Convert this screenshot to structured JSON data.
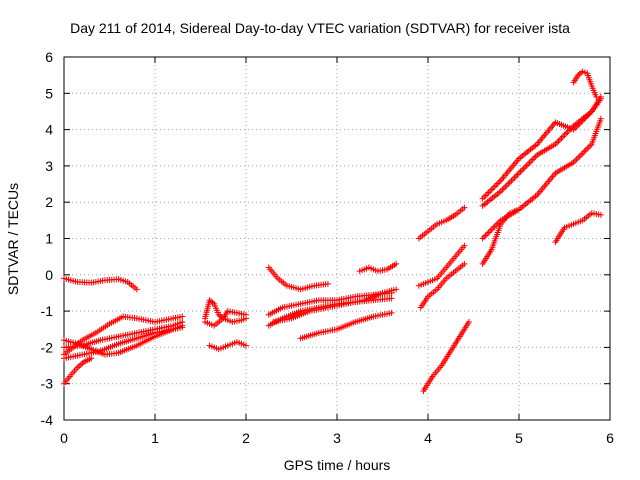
{
  "chart_data": {
    "type": "scatter",
    "title": "Day 211 of 2014, Sidereal Day-to-day VTEC variation (SDTVAR) for receiver ista",
    "xlabel": "GPS time / hours",
    "ylabel": "SDTVAR / TECUs",
    "xlim": [
      0,
      6
    ],
    "ylim": [
      -4,
      6
    ],
    "xticks": [
      "0",
      "1",
      "2",
      "3",
      "4",
      "5",
      "6"
    ],
    "yticks": [
      "-4",
      "-3",
      "-2",
      "-1",
      "0",
      "1",
      "2",
      "3",
      "4",
      "5",
      "6"
    ],
    "grid": true,
    "marker": "+",
    "marker_color": "#ff0000",
    "series": [
      {
        "x": [
          0.0,
          0.15,
          0.3,
          0.45,
          0.6,
          0.7,
          0.8
        ],
        "y": [
          -0.1,
          -0.2,
          -0.22,
          -0.15,
          -0.12,
          -0.2,
          -0.4
        ]
      },
      {
        "x": [
          0.0,
          0.1,
          0.2,
          0.35,
          0.5,
          0.65,
          0.8,
          1.0,
          1.2,
          1.3
        ],
        "y": [
          -2.2,
          -2.0,
          -1.8,
          -1.6,
          -1.35,
          -1.15,
          -1.2,
          -1.3,
          -1.2,
          -1.15
        ]
      },
      {
        "x": [
          0.0,
          0.2,
          0.4,
          0.6,
          0.8,
          1.0,
          1.2,
          1.3
        ],
        "y": [
          -2.3,
          -2.2,
          -2.1,
          -1.9,
          -1.75,
          -1.6,
          -1.5,
          -1.4
        ]
      },
      {
        "x": [
          0.0,
          0.2,
          0.4,
          0.6,
          0.8,
          1.0,
          1.2,
          1.3
        ],
        "y": [
          -2.0,
          -1.95,
          -1.8,
          -1.7,
          -1.6,
          -1.5,
          -1.4,
          -1.3
        ]
      },
      {
        "x": [
          0.0,
          0.15,
          0.3,
          0.45,
          0.6,
          0.8,
          1.0,
          1.2,
          1.3
        ],
        "y": [
          -1.8,
          -1.9,
          -2.05,
          -2.2,
          -2.15,
          -1.95,
          -1.7,
          -1.5,
          -1.45
        ]
      },
      {
        "x": [
          0.0,
          0.08,
          0.15,
          0.22,
          0.3
        ],
        "y": [
          -3.0,
          -2.75,
          -2.55,
          -2.4,
          -2.3
        ]
      },
      {
        "x": [
          1.6,
          1.7,
          1.8,
          1.9,
          2.0
        ],
        "y": [
          -1.95,
          -2.05,
          -1.95,
          -1.85,
          -1.95
        ]
      },
      {
        "x": [
          1.55,
          1.6,
          1.65,
          1.7,
          1.75,
          1.8,
          1.9,
          2.0
        ],
        "y": [
          -1.2,
          -0.7,
          -0.8,
          -1.1,
          -1.2,
          -1.0,
          -1.05,
          -1.1
        ]
      },
      {
        "x": [
          1.55,
          1.65,
          1.75,
          1.85,
          1.95,
          2.0
        ],
        "y": [
          -1.3,
          -1.4,
          -1.2,
          -1.3,
          -1.25,
          -1.2
        ]
      },
      {
        "x": [
          2.25,
          2.35,
          2.45,
          2.6,
          2.75,
          2.9
        ],
        "y": [
          0.2,
          -0.1,
          -0.3,
          -0.4,
          -0.3,
          -0.25
        ]
      },
      {
        "x": [
          2.25,
          2.4,
          2.6,
          2.8,
          3.0,
          3.2,
          3.4,
          3.6
        ],
        "y": [
          -1.4,
          -1.2,
          -1.0,
          -0.9,
          -0.8,
          -0.75,
          -0.7,
          -0.65
        ]
      },
      {
        "x": [
          2.25,
          2.4,
          2.6,
          2.8,
          3.0,
          3.2,
          3.4,
          3.6
        ],
        "y": [
          -1.1,
          -0.9,
          -0.8,
          -0.7,
          -0.7,
          -0.6,
          -0.55,
          -0.5
        ]
      },
      {
        "x": [
          2.3,
          2.5,
          2.7,
          2.9,
          3.1,
          3.3,
          3.5,
          3.65
        ],
        "y": [
          -1.3,
          -1.2,
          -1.0,
          -0.9,
          -0.8,
          -0.7,
          -0.5,
          -0.4
        ]
      },
      {
        "x": [
          2.6,
          2.8,
          3.0,
          3.2,
          3.4,
          3.6
        ],
        "y": [
          -1.75,
          -1.6,
          -1.5,
          -1.3,
          -1.15,
          -1.05
        ]
      },
      {
        "x": [
          3.25,
          3.35,
          3.45,
          3.55,
          3.65
        ],
        "y": [
          0.1,
          0.2,
          0.1,
          0.15,
          0.3
        ]
      },
      {
        "x": [
          3.9,
          4.0,
          4.1,
          4.2,
          4.3,
          4.4
        ],
        "y": [
          1.0,
          1.2,
          1.4,
          1.5,
          1.65,
          1.85
        ]
      },
      {
        "x": [
          3.9,
          4.0,
          4.1,
          4.2,
          4.3,
          4.4
        ],
        "y": [
          -0.3,
          -0.2,
          -0.1,
          0.2,
          0.5,
          0.8
        ]
      },
      {
        "x": [
          3.92,
          4.0,
          4.1,
          4.2,
          4.3,
          4.4
        ],
        "y": [
          -0.9,
          -0.6,
          -0.4,
          -0.1,
          0.1,
          0.3
        ]
      },
      {
        "x": [
          3.95,
          4.05,
          4.15,
          4.25,
          4.35,
          4.45
        ],
        "y": [
          -3.2,
          -2.8,
          -2.5,
          -2.1,
          -1.7,
          -1.3
        ]
      },
      {
        "x": [
          4.6,
          4.8,
          5.0,
          5.2,
          5.4,
          5.6,
          5.8,
          5.9
        ],
        "y": [
          2.1,
          2.6,
          3.2,
          3.6,
          4.2,
          4.0,
          4.5,
          4.85
        ]
      },
      {
        "x": [
          4.6,
          4.8,
          5.0,
          5.2,
          5.4,
          5.6,
          5.8,
          5.9
        ],
        "y": [
          1.9,
          2.3,
          2.8,
          3.3,
          3.6,
          4.1,
          4.5,
          4.9
        ]
      },
      {
        "x": [
          4.6,
          4.8,
          5.0,
          5.2,
          5.4,
          5.6,
          5.8,
          5.9
        ],
        "y": [
          1.0,
          1.5,
          1.8,
          2.2,
          2.8,
          3.1,
          3.6,
          4.3
        ]
      },
      {
        "x": [
          4.6,
          4.7,
          4.8,
          4.9,
          5.0
        ],
        "y": [
          0.3,
          0.7,
          1.4,
          1.7,
          1.8
        ]
      },
      {
        "x": [
          5.4,
          5.5,
          5.6,
          5.7,
          5.8,
          5.9
        ],
        "y": [
          0.9,
          1.3,
          1.4,
          1.5,
          1.7,
          1.65
        ]
      },
      {
        "x": [
          5.6,
          5.65,
          5.7,
          5.75,
          5.8,
          5.85
        ],
        "y": [
          5.3,
          5.5,
          5.6,
          5.55,
          5.2,
          4.9
        ]
      }
    ]
  }
}
